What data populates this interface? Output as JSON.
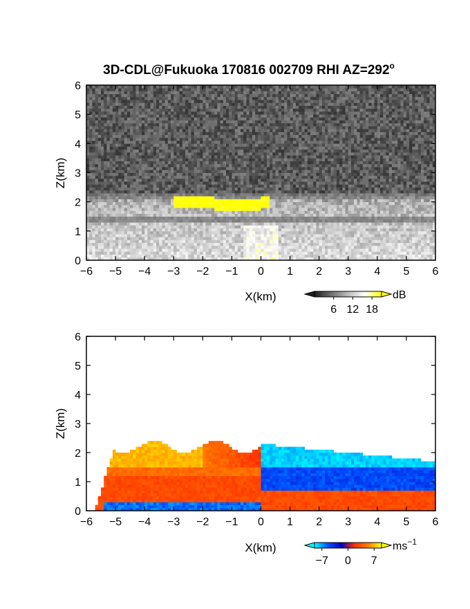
{
  "title": "3D-CDL@Fukuoka 170816 002709 RHI AZ=292",
  "title_superscript": "o",
  "chart_data": [
    {
      "type": "heatmap",
      "panel": "top",
      "quantity": "backscatter intensity",
      "xlabel": "X(km)",
      "ylabel": "Z(km)",
      "xlim": [
        -6,
        6
      ],
      "ylim": [
        0,
        6
      ],
      "xticks": [
        "-6",
        "-5",
        "-4",
        "-3",
        "-2",
        "-1",
        "0",
        "1",
        "2",
        "3",
        "4",
        "5",
        "6"
      ],
      "yticks": [
        "0",
        "1",
        "2",
        "3",
        "4",
        "5",
        "6"
      ],
      "colorbar": {
        "unit": "dB",
        "ticks": [
          "6",
          "12",
          "18"
        ],
        "range": [
          0,
          21
        ],
        "colors": [
          "#1e1e1e",
          "#6e6e6e",
          "#bdbdbd",
          "#ffffff",
          "#ffff00"
        ]
      },
      "features": [
        {
          "label": "noise above layer",
          "z_range": [
            2.3,
            6.0
          ],
          "value_db": 4
        },
        {
          "label": "boundary layer",
          "z_range": [
            0.0,
            1.9
          ],
          "value_db": 13
        },
        {
          "label": "dark band",
          "z_range": [
            1.35,
            1.55
          ],
          "value_db": 6
        },
        {
          "label": "high intensity patch",
          "x_range": [
            -3.0,
            0.3
          ],
          "z_range": [
            1.7,
            2.2
          ],
          "value_db": 20
        }
      ]
    },
    {
      "type": "heatmap",
      "panel": "bottom",
      "quantity": "radial velocity",
      "xlabel": "X(km)",
      "ylabel": "Z(km)",
      "xlim": [
        -6,
        6
      ],
      "ylim": [
        0,
        6
      ],
      "xticks": [
        "-6",
        "-5",
        "-4",
        "-3",
        "-2",
        "-1",
        "0",
        "1",
        "2",
        "3",
        "4",
        "5",
        "6"
      ],
      "yticks": [
        "0",
        "1",
        "2",
        "3",
        "4",
        "5",
        "6"
      ],
      "colorbar": {
        "unit": "ms",
        "unit_superscript": "−1",
        "ticks": [
          "−7",
          "0",
          "7"
        ],
        "range": [
          -9,
          9
        ],
        "colors": [
          "#00ffff",
          "#0050ff",
          "#0000c8",
          "#ff3000",
          "#ff8000",
          "#ffff00"
        ]
      },
      "features": [
        {
          "label": "left upper layer",
          "x_range": [
            -5.7,
            0.0
          ],
          "z_range": [
            1.5,
            2.2
          ],
          "velocity": 7
        },
        {
          "label": "left lower layer",
          "x_range": [
            -5.7,
            0.0
          ],
          "z_range": [
            0.2,
            1.5
          ],
          "velocity": 3
        },
        {
          "label": "right upper layer",
          "x_range": [
            0.0,
            6.0
          ],
          "z_range": [
            1.5,
            2.3
          ],
          "velocity": -8
        },
        {
          "label": "right middle layer",
          "x_range": [
            0.0,
            6.0
          ],
          "z_range": [
            0.7,
            1.5
          ],
          "velocity": -5
        },
        {
          "label": "right lower layer",
          "x_range": [
            0.0,
            6.0
          ],
          "z_range": [
            0.05,
            0.7
          ],
          "velocity": 3
        },
        {
          "label": "left surface layer",
          "x_range": [
            -5.4,
            0.0
          ],
          "z_range": [
            0.05,
            0.25
          ],
          "velocity": -6
        }
      ]
    }
  ]
}
